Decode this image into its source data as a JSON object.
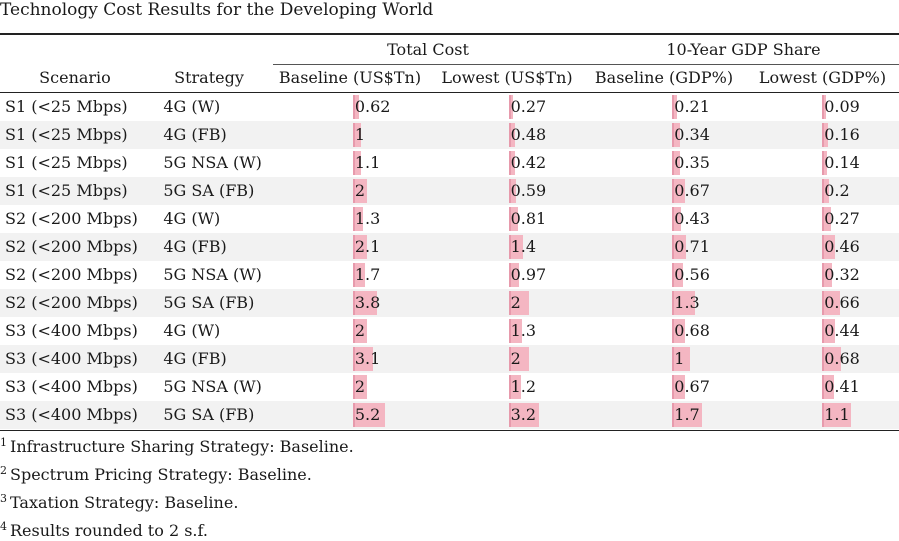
{
  "caption": "Technology Cost Results for the Developing World",
  "header": {
    "group_total_cost": "Total Cost",
    "group_gdp_share": "10-Year GDP Share",
    "columns": [
      "Scenario",
      "Strategy",
      "Baseline (US$Tn)",
      "Lowest (US$Tn)",
      "Baseline (GDP%)",
      "Lowest (GDP%)"
    ]
  },
  "rows": [
    {
      "scenario": "S1 (<25 Mbps)",
      "strategy": "4G (W)",
      "v": [
        "0.62",
        "0.27",
        "0.21",
        "0.09"
      ]
    },
    {
      "scenario": "S1 (<25 Mbps)",
      "strategy": "4G (FB)",
      "v": [
        "1",
        "0.48",
        "0.34",
        "0.16"
      ]
    },
    {
      "scenario": "S1 (<25 Mbps)",
      "strategy": "5G NSA (W)",
      "v": [
        "1.1",
        "0.42",
        "0.35",
        "0.14"
      ]
    },
    {
      "scenario": "S1 (<25 Mbps)",
      "strategy": "5G SA (FB)",
      "v": [
        "2",
        "0.59",
        "0.67",
        "0.2"
      ]
    },
    {
      "scenario": "S2 (<200 Mbps)",
      "strategy": "4G (W)",
      "v": [
        "1.3",
        "0.81",
        "0.43",
        "0.27"
      ]
    },
    {
      "scenario": "S2 (<200 Mbps)",
      "strategy": "4G (FB)",
      "v": [
        "2.1",
        "1.4",
        "0.71",
        "0.46"
      ]
    },
    {
      "scenario": "S2 (<200 Mbps)",
      "strategy": "5G NSA (W)",
      "v": [
        "1.7",
        "0.97",
        "0.56",
        "0.32"
      ]
    },
    {
      "scenario": "S2 (<200 Mbps)",
      "strategy": "5G SA (FB)",
      "v": [
        "3.8",
        "2",
        "1.3",
        "0.66"
      ]
    },
    {
      "scenario": "S3 (<400 Mbps)",
      "strategy": "4G (W)",
      "v": [
        "2",
        "1.3",
        "0.68",
        "0.44"
      ]
    },
    {
      "scenario": "S3 (<400 Mbps)",
      "strategy": "4G (FB)",
      "v": [
        "3.1",
        "2",
        "1",
        "0.68"
      ]
    },
    {
      "scenario": "S3 (<400 Mbps)",
      "strategy": "5G NSA (W)",
      "v": [
        "2",
        "1.2",
        "0.67",
        "0.41"
      ]
    },
    {
      "scenario": "S3 (<400 Mbps)",
      "strategy": "5G SA (FB)",
      "v": [
        "5.2",
        "3.2",
        "1.7",
        "1.1"
      ]
    }
  ],
  "bar_color": "#f4b6c2",
  "footnotes": [
    {
      "mark": "1",
      "text": "Infrastructure Sharing Strategy: Baseline."
    },
    {
      "mark": "2",
      "text": "Spectrum Pricing Strategy: Baseline."
    },
    {
      "mark": "3",
      "text": "Taxation Strategy: Baseline."
    },
    {
      "mark": "4",
      "text": "Results rounded to 2 s.f."
    }
  ]
}
